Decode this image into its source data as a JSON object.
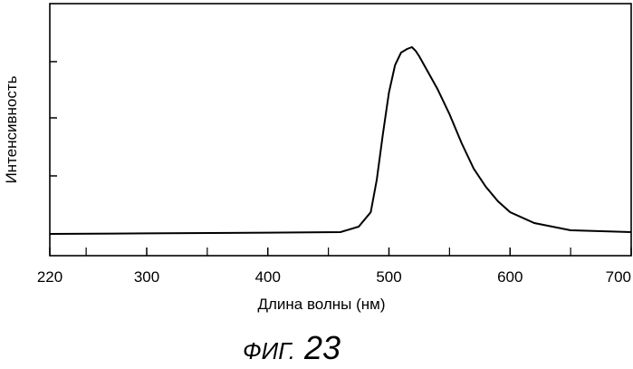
{
  "figure": {
    "caption_prefix": "ФИГ.",
    "caption_number": "23"
  },
  "chart_data": {
    "type": "line",
    "xlabel": "Длина волны (нм)",
    "ylabel": "Интенсивность",
    "xlim": [
      220,
      700
    ],
    "ylim": [
      0,
      1.05
    ],
    "x_tick_labels": [
      "220",
      "300",
      "400",
      "500",
      "600",
      "700"
    ],
    "x_tick_values": [
      220,
      300,
      400,
      500,
      600,
      700
    ],
    "x_minor_ticks": [
      250,
      350,
      450,
      550,
      650
    ],
    "y_tick_count": 4,
    "y_tick_labels": [],
    "grid": false,
    "legend": "none",
    "line_color": "#000000",
    "series": [
      {
        "x": [
          220,
          300,
          400,
          460,
          475,
          485,
          490,
          495,
          500,
          505,
          510,
          515,
          519,
          522,
          525,
          530,
          540,
          550,
          560,
          570,
          580,
          590,
          600,
          620,
          650,
          700
        ],
        "y": [
          0.0,
          0.003,
          0.007,
          0.01,
          0.04,
          0.12,
          0.3,
          0.55,
          0.78,
          0.93,
          1.0,
          1.02,
          1.03,
          1.01,
          0.98,
          0.92,
          0.8,
          0.66,
          0.5,
          0.36,
          0.26,
          0.18,
          0.12,
          0.06,
          0.02,
          0.01
        ]
      }
    ]
  }
}
